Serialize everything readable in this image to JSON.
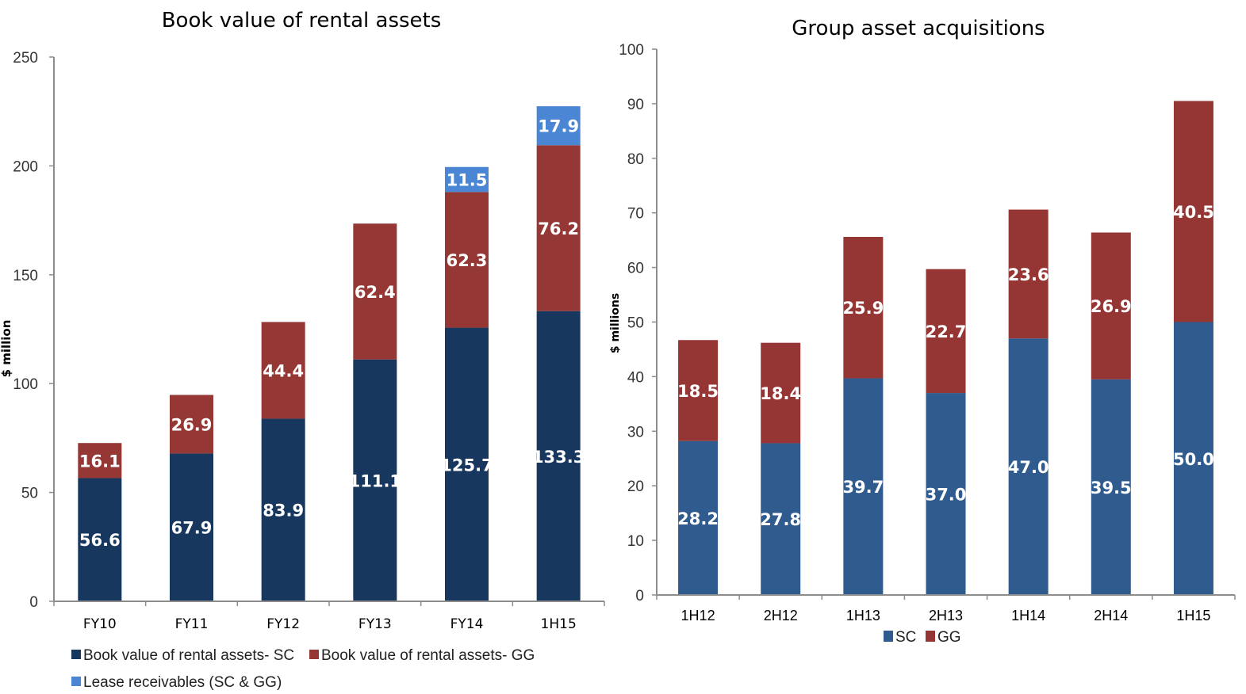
{
  "chart_data": [
    {
      "type": "bar",
      "stacked": true,
      "title": "Book value of rental assets",
      "xlabel": "",
      "ylabel": "$ million",
      "ylim": [
        0,
        250
      ],
      "yticks": [
        "0",
        "50",
        "100",
        "150",
        "200",
        "250"
      ],
      "ytick_values": [
        0,
        50,
        100,
        150,
        200,
        250
      ],
      "categories": [
        "FY10",
        "FY11",
        "FY12",
        "FY13",
        "FY14",
        "1H15"
      ],
      "series": [
        {
          "name": "Book value of rental assets- SC",
          "color": "#17375e",
          "values": [
            56.6,
            67.9,
            83.9,
            111.1,
            125.7,
            133.3
          ],
          "labels": [
            "56.6",
            "67.9",
            "83.9",
            "111.1",
            "125.7",
            "133.3"
          ]
        },
        {
          "name": "Book value of rental assets- GG",
          "color": "#953735",
          "values": [
            16.1,
            26.9,
            44.4,
            62.4,
            62.3,
            76.2
          ],
          "labels": [
            "16.1",
            "26.9",
            "44.4",
            "62.4",
            "62.3",
            "76.2"
          ]
        },
        {
          "name": "Lease receivables (SC & GG)",
          "color": "#4a86d4",
          "values": [
            0,
            0,
            0,
            0,
            11.5,
            17.9
          ],
          "labels": [
            "",
            "",
            "",
            "",
            "11.5",
            "17.9"
          ]
        }
      ],
      "legend": "bottom",
      "grid": false
    },
    {
      "type": "bar",
      "stacked": true,
      "title": "Group asset acquisitions",
      "xlabel": "",
      "ylabel": "$ millions",
      "ylim": [
        0,
        100
      ],
      "yticks": [
        "0",
        "10",
        "20",
        "30",
        "40",
        "50",
        "60",
        "70",
        "80",
        "90",
        "100"
      ],
      "ytick_values": [
        0,
        10,
        20,
        30,
        40,
        50,
        60,
        70,
        80,
        90,
        100
      ],
      "categories": [
        "1H12",
        "2H12",
        "1H13",
        "2H13",
        "1H14",
        "2H14",
        "1H15"
      ],
      "series": [
        {
          "name": "SC",
          "color": "#2f5b8f",
          "values": [
            28.2,
            27.8,
            39.7,
            37.0,
            47.0,
            39.5,
            50.0
          ],
          "labels": [
            "28.2",
            "27.8",
            "39.7",
            "37.0",
            "47.0",
            "39.5",
            "50.0"
          ]
        },
        {
          "name": "GG",
          "color": "#963634",
          "values": [
            18.5,
            18.4,
            25.9,
            22.7,
            23.6,
            26.9,
            40.5
          ],
          "labels": [
            "18.5",
            "18.4",
            "25.9",
            "22.7",
            "23.6",
            "26.9",
            "40.5"
          ]
        }
      ],
      "legend": "bottom",
      "grid": false
    }
  ]
}
